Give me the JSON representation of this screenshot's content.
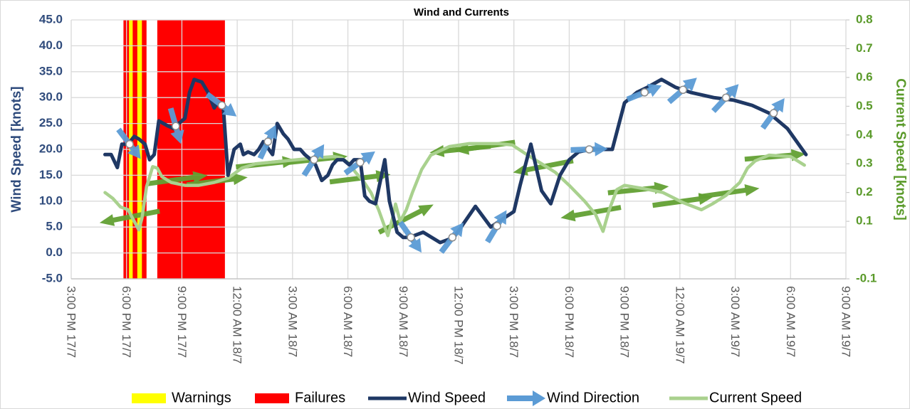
{
  "chart_data": {
    "type": "line",
    "title": "Wind and Currents",
    "y_label": "Wind Speed [knots]",
    "y2_label": "Current Speed [knots]",
    "xlim": [
      "17/7 15:00",
      "19/7 09:00"
    ],
    "xticks": [
      {
        "value": "17/7 15:00",
        "label": "3:00 PM 17/7"
      },
      {
        "value": "17/7 18:00",
        "label": "6:00 PM 17/7"
      },
      {
        "value": "17/7 21:00",
        "label": "9:00 PM 17/7"
      },
      {
        "value": "18/7 00:00",
        "label": "12:00 AM 18/7"
      },
      {
        "value": "18/7 03:00",
        "label": "3:00 AM 18/7"
      },
      {
        "value": "18/7 06:00",
        "label": "6:00 AM 18/7"
      },
      {
        "value": "18/7 09:00",
        "label": "9:00 AM 18/7"
      },
      {
        "value": "18/7 12:00",
        "label": "12:00 PM 18/7"
      },
      {
        "value": "18/7 15:00",
        "label": "3:00 PM 18/7"
      },
      {
        "value": "18/7 18:00",
        "label": "6:00 PM 18/7"
      },
      {
        "value": "18/7 21:00",
        "label": "9:00 PM 18/7"
      },
      {
        "value": "19/7 00:00",
        "label": "12:00 AM 19/7"
      },
      {
        "value": "19/7 03:00",
        "label": "3:00 AM 19/7"
      },
      {
        "value": "19/7 06:00",
        "label": "6:00 AM 19/7"
      },
      {
        "value": "19/7 09:00",
        "label": "9:00 AM 19/7"
      }
    ],
    "ylim": [
      -5,
      45
    ],
    "yticks": [
      {
        "value": 45,
        "label": "45.0"
      },
      {
        "value": 40,
        "label": "40.0"
      },
      {
        "value": 35,
        "label": "35.0"
      },
      {
        "value": 30,
        "label": "30.0"
      },
      {
        "value": 25,
        "label": "25.0"
      },
      {
        "value": 20,
        "label": "20.0"
      },
      {
        "value": 15,
        "label": "15.0"
      },
      {
        "value": 10,
        "label": "10.0"
      },
      {
        "value": 5,
        "label": "5.0"
      },
      {
        "value": 0,
        "label": "0.0"
      },
      {
        "value": -5,
        "label": "-5.0"
      }
    ],
    "y2lim": [
      -0.1,
      0.8
    ],
    "y2ticks": [
      0.8,
      0.7,
      0.6,
      0.5,
      0.4,
      0.3,
      0.2,
      0.1,
      -0.1
    ],
    "grid": true,
    "legend": "bottom",
    "bands": [
      {
        "name": "Failures",
        "color": "#ff0000",
        "spans": [
          [
            "17/7 17:50",
            "17/7 19:05"
          ],
          [
            "17/7 19:40",
            "17/7 23:20"
          ]
        ]
      },
      {
        "name": "Warnings",
        "color": "#ffff00",
        "spans": [
          [
            "17/7 18:08",
            "17/7 18:20"
          ],
          [
            "17/7 18:35",
            "17/7 18:50"
          ]
        ]
      }
    ],
    "series": [
      {
        "name": "Wind Speed",
        "color": "#1f3864",
        "axis": "y",
        "x": [
          "17/7 16:50",
          "17/7 17:10",
          "17/7 17:30",
          "17/7 17:45",
          "17/7 18:05",
          "17/7 18:25",
          "17/7 18:40",
          "17/7 19:00",
          "17/7 19:15",
          "17/7 19:30",
          "17/7 19:45",
          "17/7 20:00",
          "17/7 20:15",
          "17/7 20:35",
          "17/7 20:50",
          "17/7 21:10",
          "17/7 21:25",
          "17/7 21:40",
          "17/7 22:05",
          "17/7 22:25",
          "17/7 22:45",
          "17/7 22:55",
          "17/7 23:15",
          "17/7 23:30",
          "17/7 23:50",
          "18/7 00:10",
          "18/7 00:20",
          "18/7 00:35",
          "18/7 00:55",
          "18/7 01:10",
          "18/7 01:25",
          "18/7 01:55",
          "18/7 02:10",
          "18/7 02:30",
          "18/7 02:45",
          "18/7 03:05",
          "18/7 03:25",
          "18/7 03:40",
          "18/7 04:00",
          "18/7 04:15",
          "18/7 04:35",
          "18/7 04:55",
          "18/7 05:10",
          "18/7 05:25",
          "18/7 05:45",
          "18/7 06:05",
          "18/7 06:20",
          "18/7 06:40",
          "18/7 06:55",
          "18/7 07:10",
          "18/7 07:30",
          "18/7 08:00",
          "18/7 08:15",
          "18/7 08:40",
          "18/7 09:00",
          "18/7 09:20",
          "18/7 10:05",
          "18/7 11:00",
          "18/7 11:45",
          "18/7 12:55",
          "18/7 13:45",
          "18/7 14:35",
          "18/7 15:00",
          "18/7 15:20",
          "18/7 15:55",
          "18/7 16:30",
          "18/7 17:00",
          "18/7 17:30",
          "18/7 18:00",
          "18/7 18:30",
          "18/7 19:10",
          "18/7 20:20",
          "18/7 21:00",
          "18/7 21:40",
          "18/7 22:15",
          "18/7 23:00",
          "18/7 23:45",
          "19/7 00:35",
          "19/7 01:50",
          "19/7 02:55",
          "19/7 03:55",
          "19/7 04:50",
          "19/7 05:50",
          "19/7 06:50"
        ],
        "values": [
          19,
          19,
          16.5,
          21,
          21,
          22.5,
          22,
          21,
          18,
          19,
          25.5,
          25,
          24.5,
          24,
          25,
          26,
          31,
          33.5,
          33,
          31,
          28,
          29,
          28,
          15,
          20,
          21,
          19,
          19.5,
          19,
          20,
          21.5,
          19,
          25,
          23,
          22,
          20,
          20,
          19,
          18,
          17,
          14,
          15,
          17,
          18,
          18,
          17,
          18,
          18,
          11,
          10,
          9.5,
          18,
          10,
          4,
          3,
          3,
          4,
          2,
          3,
          9,
          5,
          7,
          8,
          13,
          21,
          12,
          9.5,
          15,
          18,
          19.5,
          20,
          20,
          29,
          31,
          32,
          33.5,
          32,
          31,
          30,
          29.5,
          28.5,
          27,
          24,
          19
        ]
      },
      {
        "name": "Current Speed",
        "color": "#a9d18e",
        "axis": "y2",
        "x": [
          "17/7 16:50",
          "17/7 17:15",
          "17/7 17:40",
          "17/7 18:05",
          "17/7 18:25",
          "17/7 18:40",
          "17/7 18:50",
          "17/7 19:05",
          "17/7 19:25",
          "17/7 19:40",
          "17/7 19:55",
          "17/7 20:25",
          "17/7 21:10",
          "17/7 21:55",
          "17/7 22:45",
          "17/7 23:30",
          "18/7 00:15",
          "18/7 01:00",
          "18/7 02:35",
          "18/7 04:10",
          "18/7 05:15",
          "18/7 05:40",
          "18/7 06:05",
          "18/7 06:25",
          "18/7 06:50",
          "18/7 07:15",
          "18/7 07:40",
          "18/7 08:10",
          "18/7 08:25",
          "18/7 08:35",
          "18/7 08:50",
          "18/7 09:10",
          "18/7 09:30",
          "18/7 10:00",
          "18/7 10:30",
          "18/7 11:30",
          "18/7 12:35",
          "18/7 14:10",
          "18/7 14:55",
          "18/7 15:45",
          "18/7 16:30",
          "18/7 17:15",
          "18/7 18:00",
          "18/7 18:50",
          "18/7 19:25",
          "18/7 19:50",
          "18/7 20:10",
          "18/7 20:35",
          "18/7 21:00",
          "18/7 21:55",
          "18/7 23:05",
          "19/7 00:10",
          "19/7 01:10",
          "19/7 01:45",
          "19/7 02:30",
          "19/7 03:15",
          "19/7 03:40",
          "19/7 04:05",
          "19/7 04:50",
          "19/7 06:00",
          "19/7 06:45"
        ],
        "values": [
          0.2,
          0.18,
          0.15,
          0.14,
          0.1,
          0.07,
          0.11,
          0.22,
          0.29,
          0.285,
          0.255,
          0.235,
          0.225,
          0.225,
          0.235,
          0.25,
          0.285,
          0.3,
          0.31,
          0.32,
          0.325,
          0.32,
          0.3,
          0.27,
          0.24,
          0.2,
          0.14,
          0.05,
          0.11,
          0.16,
          0.1,
          0.14,
          0.2,
          0.28,
          0.33,
          0.36,
          0.37,
          0.37,
          0.365,
          0.33,
          0.3,
          0.27,
          0.225,
          0.17,
          0.125,
          0.065,
          0.14,
          0.21,
          0.225,
          0.215,
          0.2,
          0.165,
          0.14,
          0.16,
          0.19,
          0.235,
          0.285,
          0.31,
          0.33,
          0.325,
          0.295
        ]
      }
    ],
    "arrows": [
      {
        "name": "Wind Direction",
        "color": "#5b9bd5",
        "axis": "y",
        "x": [
          "17/7 18:10",
          "17/7 20:40",
          "17/7 23:10",
          "18/7 01:40",
          "18/7 04:10",
          "18/7 06:40",
          "18/7 09:25",
          "18/7 11:40",
          "18/7 14:05",
          "18/7 19:05",
          "18/7 22:05",
          "19/7 00:10",
          "19/7 02:30",
          "19/7 05:05"
        ],
        "values": [
          21,
          24.5,
          28.5,
          21.5,
          18,
          17.5,
          3,
          3,
          5.2,
          20,
          31,
          31.5,
          30,
          27
        ],
        "angles": [
          53,
          74,
          37,
          -65,
          -57,
          -36,
          55,
          -53,
          -59,
          -2,
          -22,
          -41,
          -47,
          -54
        ]
      },
      {
        "color": "#62a033",
        "axis": "y2",
        "x": [
          "17/7 18:10",
          "17/7 20:45",
          "17/7 22:55",
          "18/7 01:35",
          "18/7 04:20",
          "18/7 06:40",
          "18/7 09:10",
          "18/7 12:05",
          "18/7 13:25",
          "18/7 16:35",
          "18/7 19:10",
          "18/7 21:45",
          "19/7 00:10",
          "19/7 02:40",
          "19/7 05:10"
        ],
        "values": [
          0.115,
          0.245,
          0.24,
          0.3,
          0.315,
          0.25,
          0.11,
          0.35,
          0.36,
          0.29,
          0.13,
          0.21,
          0.17,
          0.2,
          0.325
        ],
        "angles": [
          169,
          -8,
          -7,
          -6,
          -6,
          -7,
          -27,
          174,
          172,
          169,
          170,
          -6,
          -8,
          -8,
          -5
        ]
      }
    ]
  }
}
